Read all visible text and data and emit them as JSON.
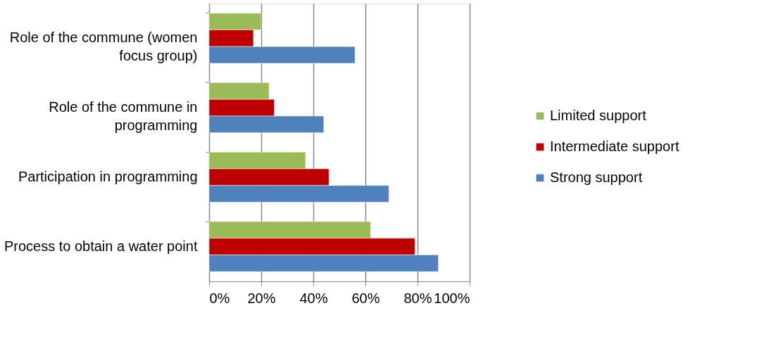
{
  "chart_data": {
    "type": "bar",
    "orientation": "horizontal",
    "categories": [
      "Role of the commune (women focus group)",
      "Role of the commune in programming",
      "Participation in programming",
      "Process to obtain a water point"
    ],
    "series": [
      {
        "name": "Limited support",
        "color": "#9bbb59",
        "values": [
          20,
          23,
          37,
          62
        ]
      },
      {
        "name": "Intermediate support",
        "color": "#c00000",
        "values": [
          17,
          25,
          46,
          79
        ]
      },
      {
        "name": "Strong support",
        "color": "#4f81bd",
        "values": [
          56,
          44,
          69,
          88
        ]
      }
    ],
    "xlim": [
      0,
      100
    ],
    "xticks": [
      {
        "value": 0,
        "label": "0%"
      },
      {
        "value": 20,
        "label": "20%"
      },
      {
        "value": 40,
        "label": "40%"
      },
      {
        "value": 60,
        "label": "60%"
      },
      {
        "value": 80,
        "label": "80%"
      },
      {
        "value": 100,
        "label": "100%"
      }
    ],
    "grid": "x",
    "legend": "right"
  }
}
